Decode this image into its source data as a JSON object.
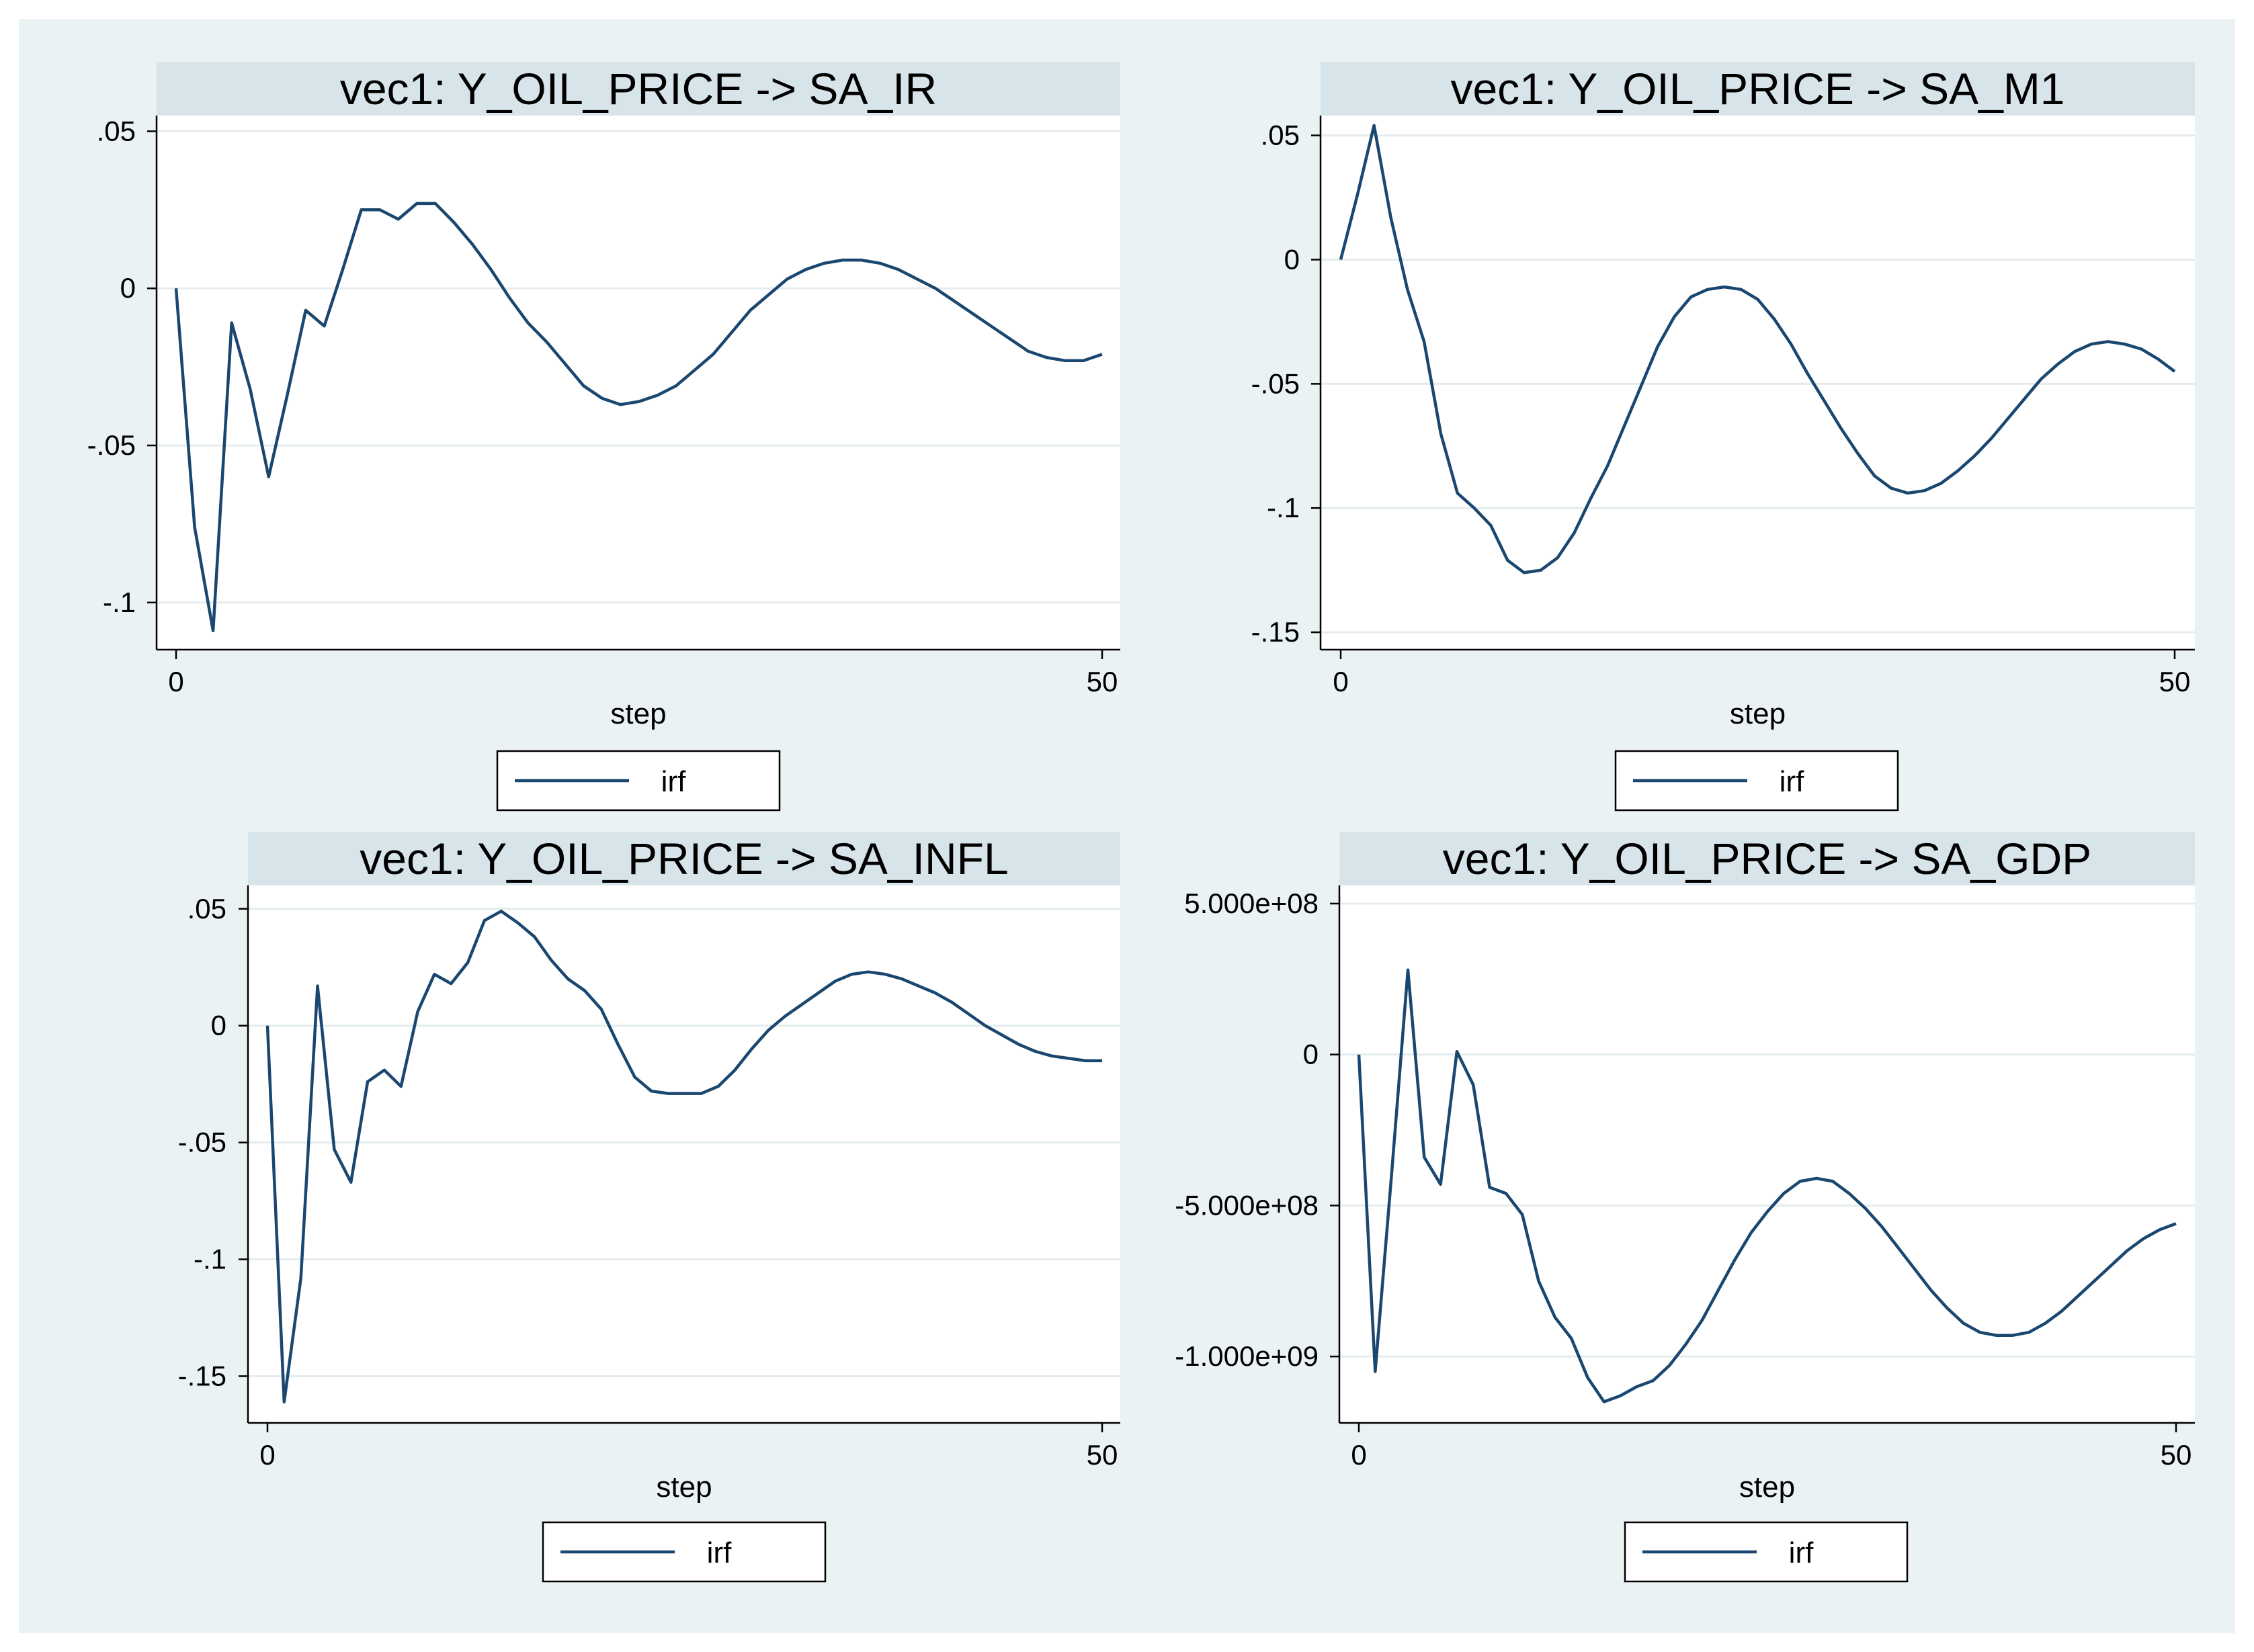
{
  "series_color": "#1a476f",
  "chart_data": [
    {
      "type": "line",
      "title": "vec1: Y_OIL_PRICE -> SA_IR",
      "xlabel": "step",
      "ylabel": "",
      "xlim": [
        0,
        50
      ],
      "ylim": [
        -0.115,
        0.055
      ],
      "xticks": [
        0,
        50
      ],
      "xtick_labels": [
        "0",
        "50"
      ],
      "yticks": [
        0.05,
        0,
        -0.05,
        -0.1
      ],
      "ytick_labels": [
        ".05",
        "0",
        "-.05",
        "-.1"
      ],
      "grid": true,
      "legend": [
        "irf"
      ],
      "series": [
        {
          "name": "irf",
          "x": [
            0,
            1,
            2,
            3,
            4,
            5,
            6,
            7,
            8,
            9,
            10,
            11,
            12,
            13,
            14,
            15,
            16,
            17,
            18,
            19,
            20,
            21,
            22,
            23,
            24,
            25,
            26,
            27,
            28,
            29,
            30,
            31,
            32,
            33,
            34,
            35,
            36,
            37,
            38,
            39,
            40,
            41,
            42,
            43,
            44,
            45,
            46,
            47,
            48,
            49,
            50
          ],
          "y": [
            0,
            -0.076,
            -0.109,
            -0.011,
            -0.032,
            -0.06,
            -0.034,
            -0.007,
            -0.012,
            0.006,
            0.025,
            0.025,
            0.022,
            0.027,
            0.027,
            0.021,
            0.014,
            0.006,
            -0.003,
            -0.011,
            -0.017,
            -0.024,
            -0.031,
            -0.035,
            -0.037,
            -0.036,
            -0.034,
            -0.031,
            -0.026,
            -0.021,
            -0.014,
            -0.007,
            -0.002,
            0.003,
            0.006,
            0.008,
            0.009,
            0.009,
            0.008,
            0.006,
            0.003,
            0.0,
            -0.004,
            -0.008,
            -0.012,
            -0.016,
            -0.02,
            -0.022,
            -0.023,
            -0.023,
            -0.021
          ]
        }
      ]
    },
    {
      "type": "line",
      "title": "vec1: Y_OIL_PRICE -> SA_M1",
      "xlabel": "step",
      "ylabel": "",
      "xlim": [
        0,
        50
      ],
      "ylim": [
        -0.157,
        0.058
      ],
      "xticks": [
        0,
        50
      ],
      "xtick_labels": [
        "0",
        "50"
      ],
      "yticks": [
        0.05,
        0,
        -0.05,
        -0.1,
        -0.15
      ],
      "ytick_labels": [
        ".05",
        "0",
        "-.05",
        "-.1",
        "-.15"
      ],
      "grid": true,
      "legend": [
        "irf"
      ],
      "series": [
        {
          "name": "irf",
          "x": [
            0,
            1,
            2,
            3,
            4,
            5,
            6,
            7,
            8,
            9,
            10,
            11,
            12,
            13,
            14,
            15,
            16,
            17,
            18,
            19,
            20,
            21,
            22,
            23,
            24,
            25,
            26,
            27,
            28,
            29,
            30,
            31,
            32,
            33,
            34,
            35,
            36,
            37,
            38,
            39,
            40,
            41,
            42,
            43,
            44,
            45,
            46,
            47,
            48,
            49,
            50
          ],
          "y": [
            0,
            0.026,
            0.054,
            0.017,
            -0.012,
            -0.033,
            -0.07,
            -0.094,
            -0.1,
            -0.107,
            -0.121,
            -0.126,
            -0.125,
            -0.12,
            -0.11,
            -0.096,
            -0.083,
            -0.067,
            -0.051,
            -0.035,
            -0.023,
            -0.015,
            -0.012,
            -0.011,
            -0.012,
            -0.016,
            -0.024,
            -0.034,
            -0.046,
            -0.057,
            -0.068,
            -0.078,
            -0.087,
            -0.092,
            -0.094,
            -0.093,
            -0.09,
            -0.085,
            -0.079,
            -0.072,
            -0.064,
            -0.056,
            -0.048,
            -0.042,
            -0.037,
            -0.034,
            -0.033,
            -0.034,
            -0.036,
            -0.04,
            -0.045
          ]
        }
      ]
    },
    {
      "type": "line",
      "title": "vec1: Y_OIL_PRICE -> SA_INFL",
      "xlabel": "step",
      "ylabel": "",
      "xlim": [
        0,
        50
      ],
      "ylim": [
        -0.17,
        0.06
      ],
      "xticks": [
        0,
        50
      ],
      "xtick_labels": [
        "0",
        "50"
      ],
      "yticks": [
        0.05,
        0,
        -0.05,
        -0.1,
        -0.15
      ],
      "ytick_labels": [
        ".05",
        "0",
        "-.05",
        "-.1",
        "-.15"
      ],
      "grid": true,
      "legend": [
        "irf"
      ],
      "series": [
        {
          "name": "irf",
          "x": [
            0,
            1,
            2,
            3,
            4,
            5,
            6,
            7,
            8,
            9,
            10,
            11,
            12,
            13,
            14,
            15,
            16,
            17,
            18,
            19,
            20,
            21,
            22,
            23,
            24,
            25,
            26,
            27,
            28,
            29,
            30,
            31,
            32,
            33,
            34,
            35,
            36,
            37,
            38,
            39,
            40,
            41,
            42,
            43,
            44,
            45,
            46,
            47,
            48,
            49,
            50
          ],
          "y": [
            0,
            -0.161,
            -0.108,
            0.017,
            -0.053,
            -0.067,
            -0.024,
            -0.019,
            -0.026,
            0.006,
            0.022,
            0.018,
            0.027,
            0.045,
            0.049,
            0.044,
            0.038,
            0.028,
            0.02,
            0.015,
            0.007,
            -0.008,
            -0.022,
            -0.028,
            -0.029,
            -0.029,
            -0.029,
            -0.026,
            -0.019,
            -0.01,
            -0.002,
            0.004,
            0.009,
            0.014,
            0.019,
            0.022,
            0.023,
            0.022,
            0.02,
            0.017,
            0.014,
            0.01,
            0.005,
            0.0,
            -0.004,
            -0.008,
            -0.011,
            -0.013,
            -0.014,
            -0.015,
            -0.015
          ]
        }
      ]
    },
    {
      "type": "line",
      "title": "vec1: Y_OIL_PRICE -> SA_GDP",
      "xlabel": "step",
      "ylabel": "",
      "xlim": [
        0,
        50
      ],
      "ylim": [
        -1220000000,
        560000000
      ],
      "xticks": [
        0,
        50
      ],
      "xtick_labels": [
        "0",
        "50"
      ],
      "yticks": [
        500000000,
        0,
        -500000000,
        -1000000000
      ],
      "ytick_labels": [
        "5.000e+08",
        "0",
        "-5.000e+08",
        "-1.000e+09"
      ],
      "grid": true,
      "legend": [
        "irf"
      ],
      "series": [
        {
          "name": "irf",
          "x": [
            0,
            1,
            2,
            3,
            4,
            5,
            6,
            7,
            8,
            9,
            10,
            11,
            12,
            13,
            14,
            15,
            16,
            17,
            18,
            19,
            20,
            21,
            22,
            23,
            24,
            25,
            26,
            27,
            28,
            29,
            30,
            31,
            32,
            33,
            34,
            35,
            36,
            37,
            38,
            39,
            40,
            41,
            42,
            43,
            44,
            45,
            46,
            47,
            48,
            49,
            50
          ],
          "y": [
            0,
            -1050000000,
            -400000000,
            280000000,
            -340000000,
            -430000000,
            10000000,
            -100000000,
            -440000000,
            -460000000,
            -530000000,
            -750000000,
            -870000000,
            -940000000,
            -1070000000,
            -1150000000,
            -1130000000,
            -1100000000,
            -1080000000,
            -1030000000,
            -960000000,
            -880000000,
            -780000000,
            -680000000,
            -590000000,
            -520000000,
            -460000000,
            -420000000,
            -410000000,
            -420000000,
            -460000000,
            -510000000,
            -570000000,
            -640000000,
            -710000000,
            -780000000,
            -840000000,
            -890000000,
            -920000000,
            -930000000,
            -930000000,
            -920000000,
            -890000000,
            -850000000,
            -800000000,
            -750000000,
            -700000000,
            -650000000,
            -610000000,
            -580000000,
            -560000000
          ]
        }
      ]
    }
  ]
}
